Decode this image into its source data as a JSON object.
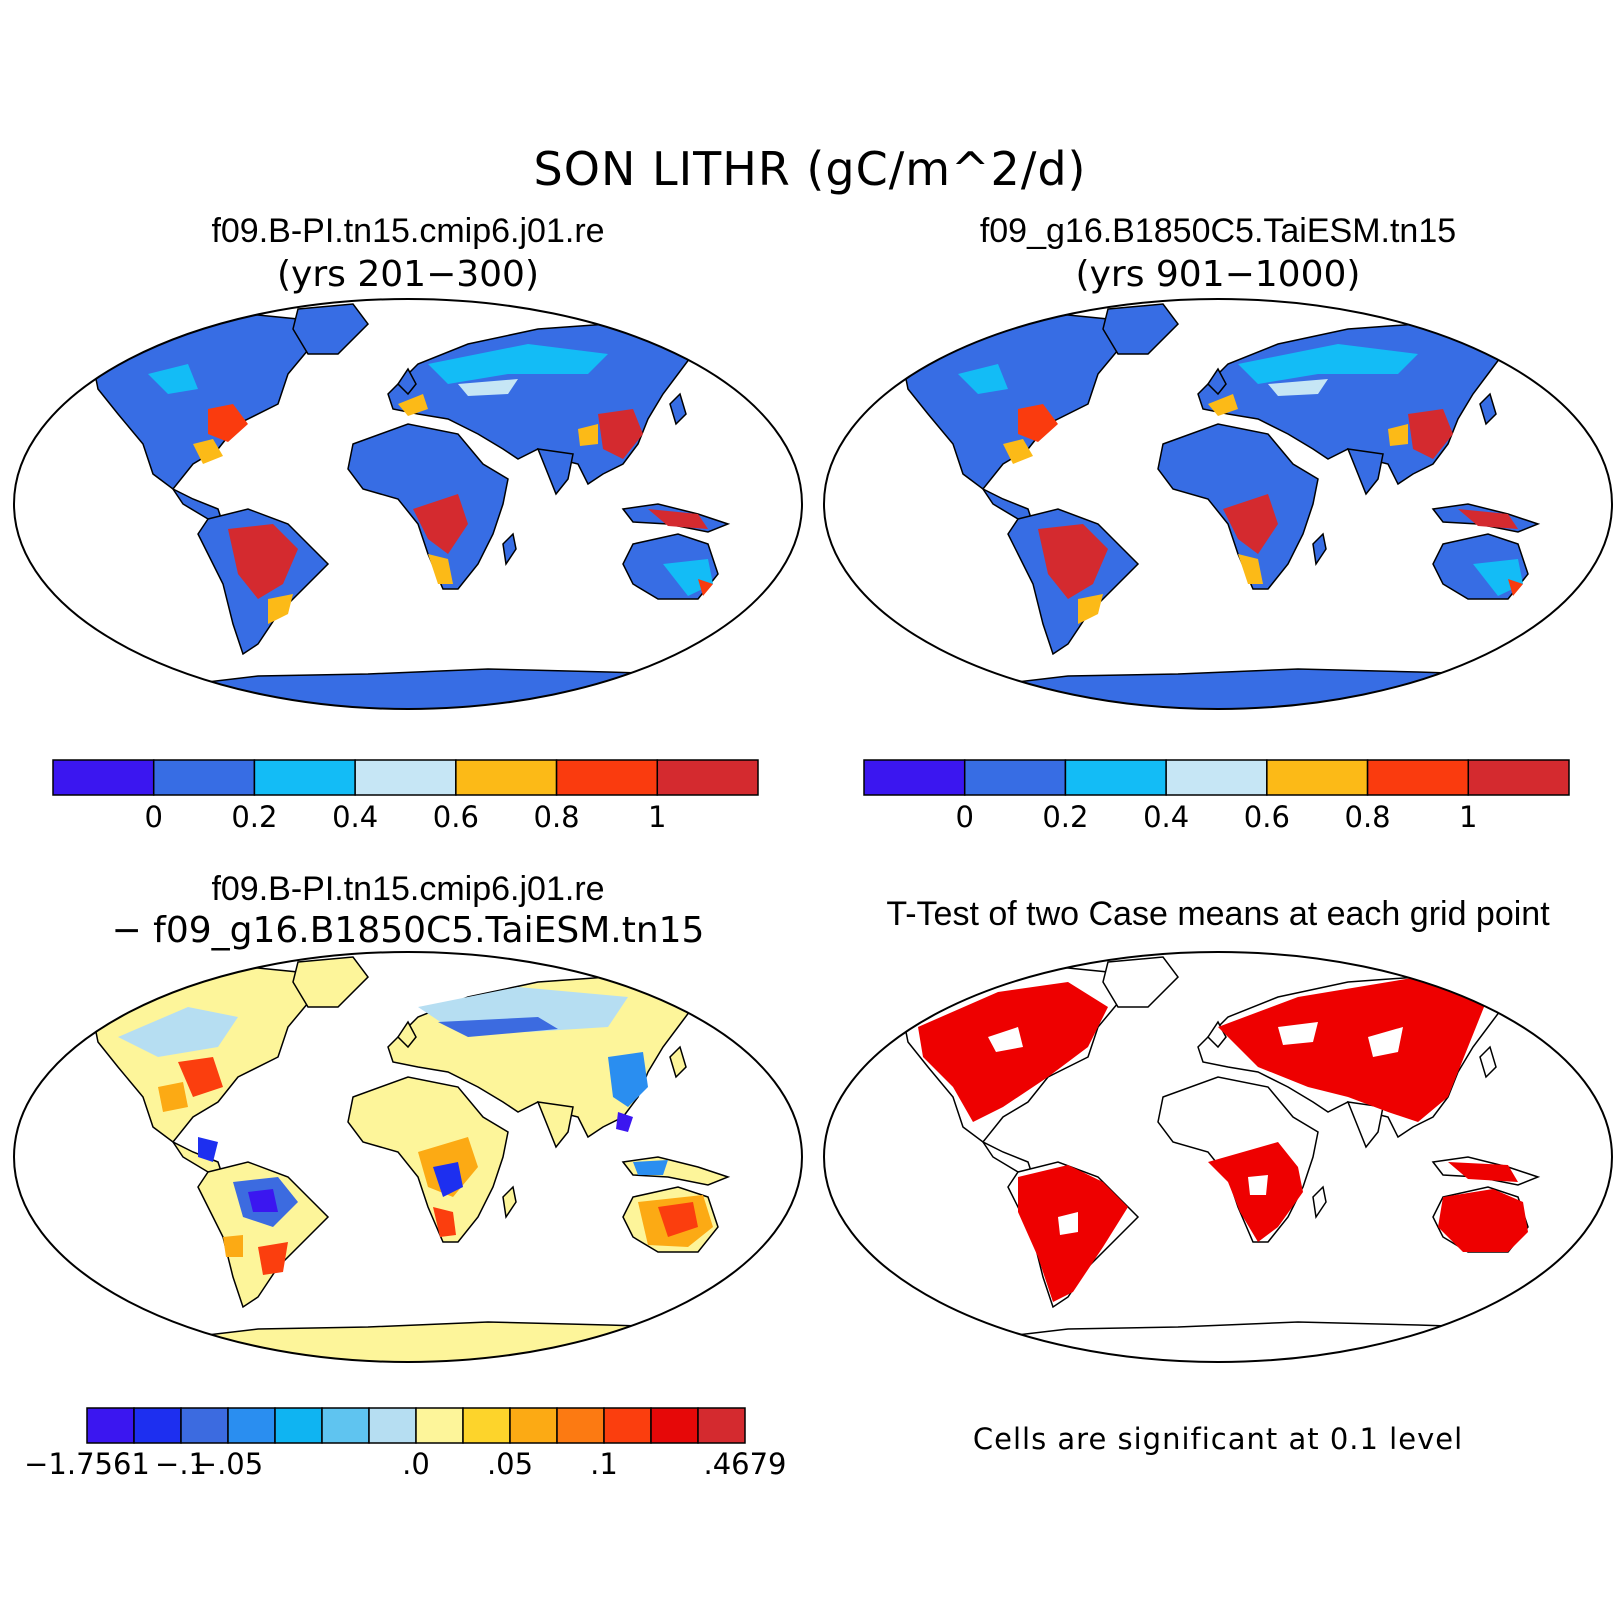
{
  "main_title": "SON LITHR (gC/m^2/d)",
  "panels": [
    {
      "title": "f09.B-PI.tn15.cmip6.j01.re",
      "subtitle": "(yrs 201−300)"
    },
    {
      "title": "f09_g16.B1850C5.TaiESM.tn15",
      "subtitle": "(yrs 901−1000)"
    },
    {
      "title": "f09.B-PI.tn15.cmip6.j01.re",
      "subtitle": "− f09_g16.B1850C5.TaiESM.tn15"
    },
    {
      "title": "T-Test of two Case means at each grid point",
      "subtitle": ""
    }
  ],
  "colorbar_abs": {
    "colors": [
      "#3b16f0",
      "#376de4",
      "#13bcf6",
      "#c6e6f5",
      "#fcba17",
      "#fa3b0e",
      "#d42a2f"
    ],
    "labels": [
      "0",
      "0.2",
      "0.4",
      "0.6",
      "0.8",
      "1"
    ]
  },
  "colorbar_diff": {
    "colors": [
      "#3b16f0",
      "#1d2ff0",
      "#3c6be0",
      "#2a8ef0",
      "#0fb4f2",
      "#5fc4f0",
      "#b6def2",
      "#fdf59a",
      "#fdd42b",
      "#fcaa14",
      "#fc7a12",
      "#fb3e0e",
      "#e60808",
      "#d42a2f"
    ],
    "labels": [
      "−1.7561",
      "−.1",
      "−.05",
      ".0",
      ".05",
      ".1",
      ".4679"
    ]
  },
  "significance_note": "Cells are significant at 0.1 level"
}
